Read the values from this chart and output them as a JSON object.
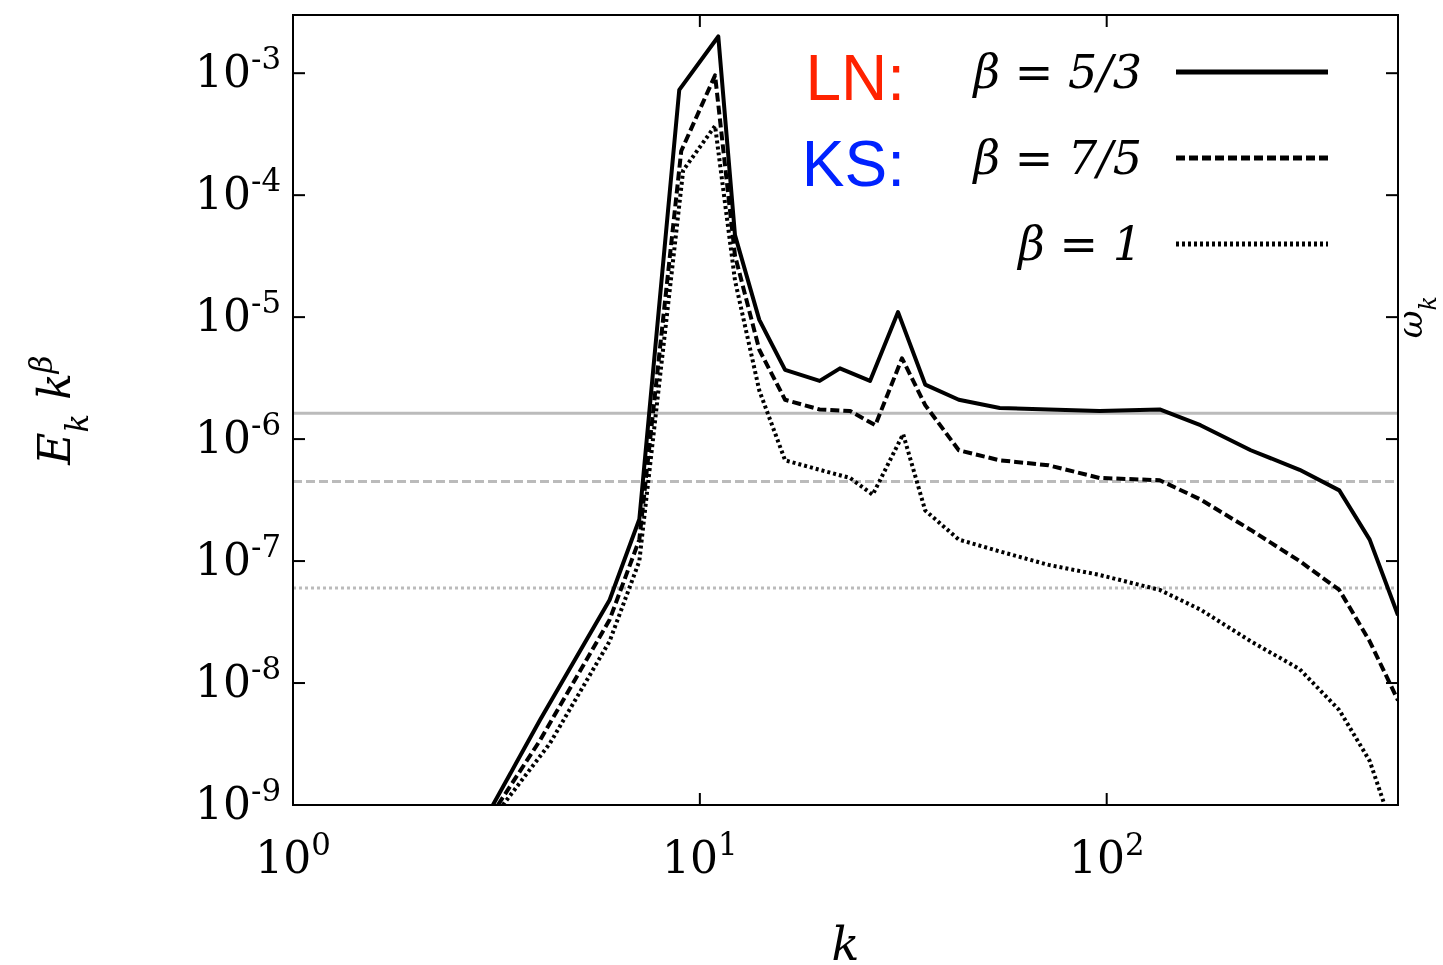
{
  "chart_data": {
    "type": "line",
    "xlabel": "k",
    "ylabel": "E$_{k}$ k$^{β}$",
    "y2label": "ω$_{k}$",
    "log": "xy",
    "xlim": [
      1,
      520
    ],
    "ylim": [
      1e-09,
      0.003
    ],
    "xticks": [
      {
        "value": 1,
        "label": "10$^{0}$"
      },
      {
        "value": 10,
        "label": "10$^{1}$"
      },
      {
        "value": 100,
        "label": "10$^{2}$"
      }
    ],
    "yticks": [
      {
        "value": 1e-09,
        "label": "10$^{-9}$"
      },
      {
        "value": 1e-08,
        "label": "10$^{-8}$"
      },
      {
        "value": 1e-07,
        "label": "10$^{-7}$"
      },
      {
        "value": 1e-06,
        "label": "10$^{-6}$"
      },
      {
        "value": 1e-05,
        "label": "10$^{-5}$"
      },
      {
        "value": 0.0001,
        "label": "10$^{-4}$"
      },
      {
        "value": 0.001,
        "label": "10$^{-3}$"
      }
    ],
    "legend": "top right",
    "annotations": [
      "LN:",
      "KS:"
    ],
    "ref_lines": [
      {
        "axis": "y",
        "value": 1.63e-06,
        "color": "#bbbbbb",
        "line_style": "solid"
      },
      {
        "axis": "y",
        "value": 4.5e-07,
        "color": "#bbbbbb",
        "line_style": "dashed"
      },
      {
        "axis": "y",
        "value": 6e-08,
        "color": "#bbbbbb",
        "line_style": "dotted"
      }
    ],
    "series": [
      {
        "name": "β = 5/3",
        "color": "#000000",
        "line_style": "solid",
        "x": [
          3.1,
          4.05,
          6.0,
          7.1,
          8.9,
          11.1,
          12.2,
          14.0,
          16.2,
          19.7,
          22.1,
          26.2,
          30.7,
          35.8,
          43.3,
          54.6,
          72,
          96,
          135,
          170,
          226,
          298,
          373,
          443,
          520
        ],
        "values": [
          1e-09,
          5e-09,
          4.8e-08,
          2.2e-07,
          0.00073,
          0.002,
          4.7e-05,
          9.5e-06,
          3.7e-06,
          3e-06,
          3.8e-06,
          3e-06,
          1.1e-05,
          2.8e-06,
          2.1e-06,
          1.8e-06,
          1.75e-06,
          1.7e-06,
          1.75e-06,
          1.3e-06,
          8.1e-07,
          5.6e-07,
          3.8e-07,
          1.5e-07,
          3.6e-08
        ]
      },
      {
        "name": "β = 7/5",
        "color": "#000000",
        "line_style": "dashed",
        "x": [
          3.19,
          4.05,
          6.0,
          7.1,
          9.0,
          10.9,
          12.2,
          14.0,
          16.2,
          19.7,
          23.4,
          27,
          31.4,
          35.8,
          43.3,
          54.6,
          72,
          96,
          135,
          170,
          226,
          298,
          373,
          443,
          520
        ],
        "values": [
          1e-09,
          3.4e-09,
          3.3e-08,
          1.5e-07,
          0.00023,
          0.00096,
          3.2e-05,
          5.4e-06,
          2.1e-06,
          1.75e-06,
          1.7e-06,
          1.3e-06,
          4.6e-06,
          1.9e-06,
          8.1e-07,
          6.7e-07,
          6.1e-07,
          4.8e-07,
          4.6e-07,
          3.2e-07,
          1.8e-07,
          1e-07,
          5.8e-08,
          2.2e-08,
          7.2e-09
        ]
      },
      {
        "name": "β = 1",
        "color": "#000000",
        "line_style": "dotted",
        "x": [
          3.28,
          4.28,
          6.0,
          7.1,
          9.1,
          10.9,
          12.2,
          14.0,
          16.2,
          19.7,
          23.4,
          26.6,
          31.6,
          35.8,
          43.3,
          54.6,
          72,
          96,
          135,
          170,
          226,
          298,
          373,
          443,
          482
        ],
        "values": [
          1e-09,
          3.2e-09,
          2.2e-08,
          1e-07,
          0.00016,
          0.00037,
          2e-05,
          2.5e-06,
          6.7e-07,
          5.6e-07,
          4.8e-07,
          3.5e-07,
          1.1e-06,
          2.6e-07,
          1.5e-07,
          1.2e-07,
          9.3e-08,
          7.7e-08,
          5.8e-08,
          4e-08,
          2.2e-08,
          1.3e-08,
          6e-09,
          2.3e-09,
          1e-09
        ]
      }
    ]
  }
}
